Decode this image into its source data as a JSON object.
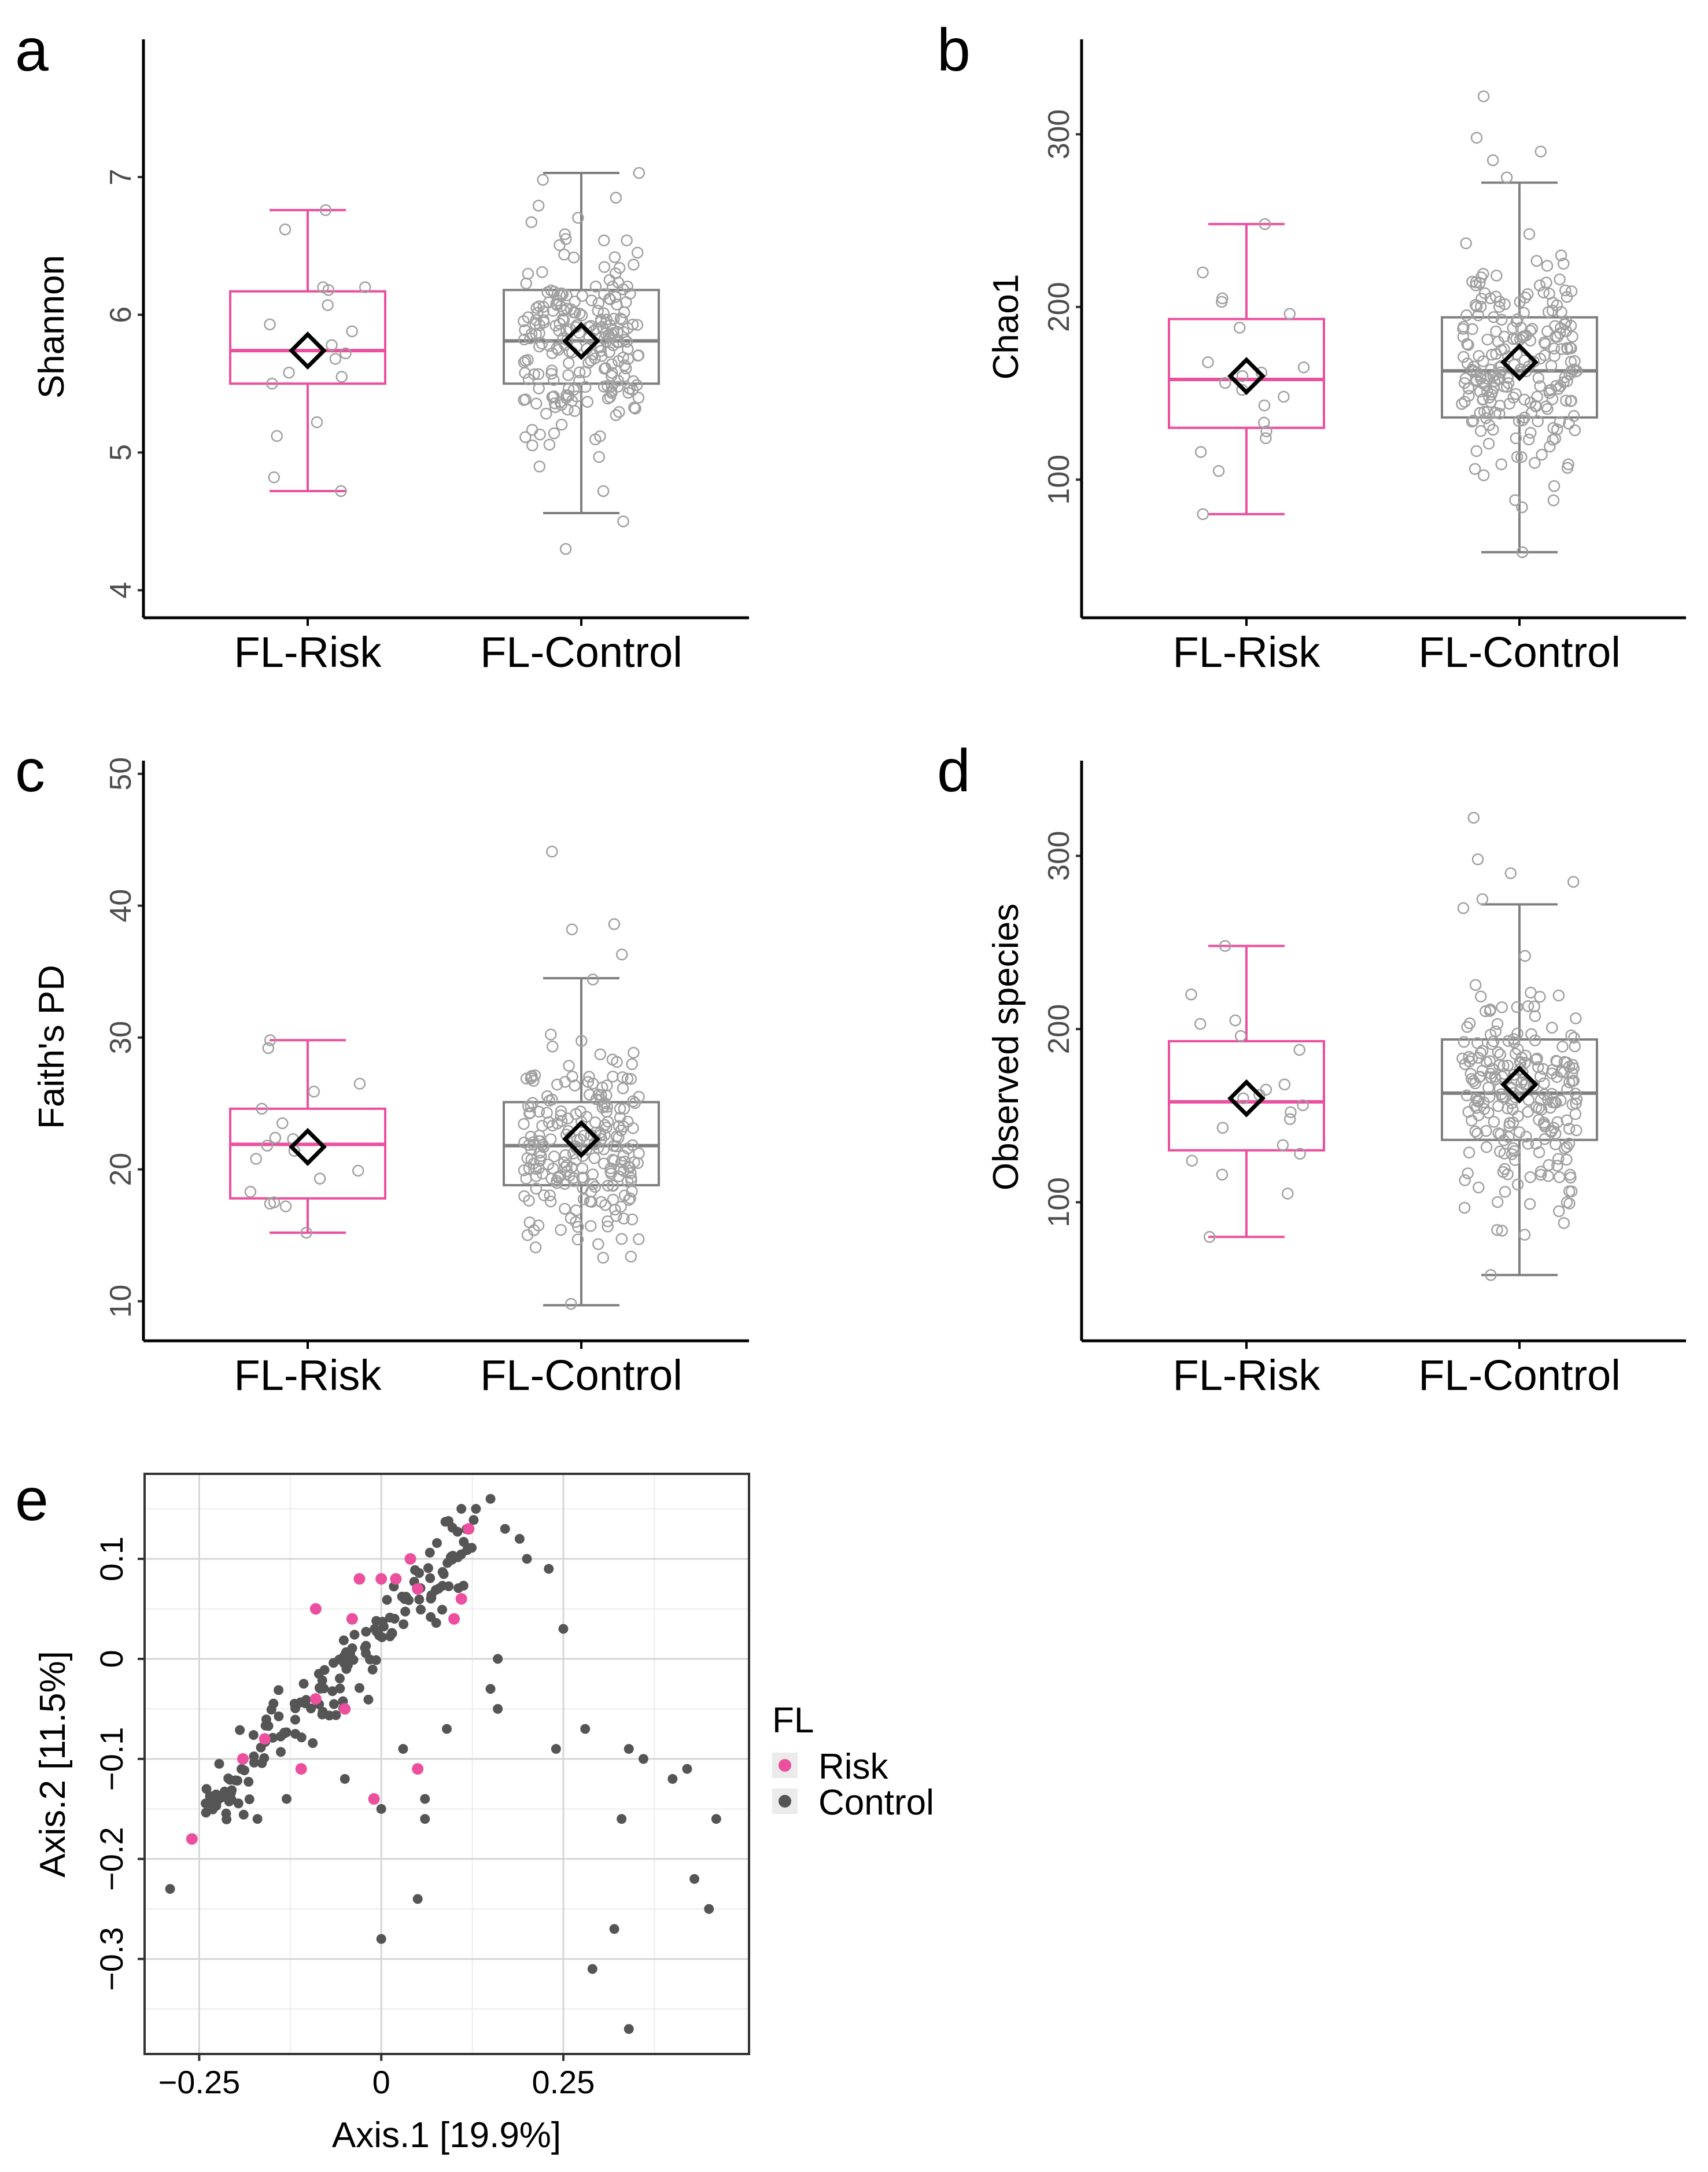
{
  "figure": {
    "panels": [
      "a",
      "b",
      "c",
      "d",
      "e"
    ],
    "colors": {
      "risk": "#ec4f9e",
      "control": "#555555",
      "control_box": "#7f7f7f",
      "grid": "#d6d6d6"
    }
  },
  "chart_data": [
    {
      "id": "a",
      "type": "box",
      "panel_label": "a",
      "ylabel": "Shannon",
      "ylim": [
        3.8,
        8.0
      ],
      "yticks": [
        4,
        5,
        6,
        7
      ],
      "categories": [
        "FL-Risk",
        "FL-Control"
      ],
      "boxes": [
        {
          "group": "FL-Risk",
          "whisker_low": 4.72,
          "q1": 5.5,
          "median": 5.74,
          "q3": 6.17,
          "whisker_high": 6.76,
          "mean": 5.74,
          "points": [
            6.76,
            6.62,
            6.2,
            6.2,
            6.18,
            6.07,
            5.93,
            5.88,
            5.78,
            5.72,
            5.68,
            5.58,
            5.55,
            5.5,
            5.22,
            5.12,
            4.82,
            4.72
          ]
        },
        {
          "group": "FL-Control",
          "whisker_low": 4.56,
          "q1": 5.5,
          "median": 5.81,
          "q3": 6.18,
          "whisker_high": 7.03,
          "mean": 5.81,
          "n_points": 230,
          "extreme_points": [
            7.03,
            6.98,
            6.85,
            4.72,
            4.5,
            4.3
          ]
        }
      ]
    },
    {
      "id": "b",
      "type": "box",
      "panel_label": "b",
      "ylabel": "Chao1",
      "ylim": [
        20,
        355
      ],
      "yticks": [
        100,
        200,
        300
      ],
      "categories": [
        "FL-Risk",
        "FL-Control"
      ],
      "boxes": [
        {
          "group": "FL-Risk",
          "whisker_low": 80,
          "q1": 130,
          "median": 158,
          "q3": 193,
          "whisker_high": 248,
          "mean": 160,
          "points": [
            248,
            220,
            205,
            203,
            196,
            188,
            168,
            165,
            162,
            160,
            156,
            152,
            148,
            143,
            133,
            128,
            124,
            116,
            105,
            80
          ]
        },
        {
          "group": "FL-Control",
          "whisker_low": 58,
          "q1": 136,
          "median": 163,
          "q3": 194,
          "whisker_high": 272,
          "mean": 168,
          "n_points": 230,
          "extreme_points": [
            322,
            298,
            290,
            285,
            275,
            88,
            84,
            58
          ]
        }
      ]
    },
    {
      "id": "c",
      "type": "box",
      "panel_label": "c",
      "ylabel": "Faith's PD",
      "ylim": [
        7,
        51
      ],
      "yticks": [
        10,
        20,
        30,
        40,
        50
      ],
      "categories": [
        "FL-Risk",
        "FL-Control"
      ],
      "boxes": [
        {
          "group": "FL-Risk",
          "whisker_low": 15.2,
          "q1": 17.8,
          "median": 21.9,
          "q3": 24.6,
          "whisker_high": 29.8,
          "mean": 21.7,
          "points": [
            29.8,
            29.2,
            26.5,
            25.9,
            24.6,
            23.5,
            22.4,
            22.3,
            21.8,
            21.4,
            20.8,
            19.9,
            19.3,
            18.3,
            17.5,
            17.4,
            17.2,
            15.2
          ]
        },
        {
          "group": "FL-Control",
          "whisker_low": 9.7,
          "q1": 18.8,
          "median": 21.8,
          "q3": 25.1,
          "whisker_high": 34.5,
          "mean": 22.3,
          "n_points": 230,
          "extreme_points": [
            44.1,
            38.6,
            38.2,
            36.3,
            34.4,
            13.3,
            9.8
          ]
        }
      ]
    },
    {
      "id": "d",
      "type": "box",
      "panel_label": "d",
      "ylabel": "Observed species",
      "ylim": [
        20,
        355
      ],
      "yticks": [
        100,
        200,
        300
      ],
      "categories": [
        "FL-Risk",
        "FL-Control"
      ],
      "boxes": [
        {
          "group": "FL-Risk",
          "whisker_low": 80,
          "q1": 130,
          "median": 158,
          "q3": 193,
          "whisker_high": 248,
          "mean": 160,
          "points": [
            248,
            220,
            205,
            203,
            196,
            188,
            168,
            165,
            162,
            160,
            156,
            152,
            148,
            143,
            133,
            128,
            124,
            116,
            105,
            80
          ]
        },
        {
          "group": "FL-Control",
          "whisker_low": 58,
          "q1": 136,
          "median": 163,
          "q3": 194,
          "whisker_high": 272,
          "mean": 168,
          "n_points": 230,
          "extreme_points": [
            322,
            298,
            290,
            285,
            275,
            88,
            84,
            58
          ]
        }
      ]
    },
    {
      "id": "e",
      "type": "scatter",
      "panel_label": "e",
      "xlabel": "Axis.1   [19.9%]",
      "ylabel": "Axis.2   [11.5%]",
      "xlim": [
        -0.325,
        0.505
      ],
      "ylim": [
        -0.395,
        0.185
      ],
      "xticks": [
        -0.25,
        0,
        0.25
      ],
      "xtick_labels": [
        "−0.25",
        "0",
        "0.25"
      ],
      "yticks": [
        -0.3,
        -0.2,
        -0.1,
        0,
        0.1
      ],
      "ytick_labels": [
        "−0.3",
        "−0.2",
        "−0.1",
        "0",
        "0.1"
      ],
      "legend": {
        "title": "FL",
        "entries": [
          "Risk",
          "Control"
        ],
        "position": "right"
      },
      "series": [
        {
          "name": "Risk",
          "points": [
            [
              0.12,
              0.13
            ],
            [
              0.04,
              0.1
            ],
            [
              0.02,
              0.08
            ],
            [
              0.0,
              0.08
            ],
            [
              -0.03,
              0.08
            ],
            [
              0.05,
              0.07
            ],
            [
              0.11,
              0.06
            ],
            [
              0.1,
              0.04
            ],
            [
              -0.09,
              0.05
            ],
            [
              -0.04,
              0.04
            ],
            [
              -0.09,
              -0.04
            ],
            [
              -0.05,
              -0.05
            ],
            [
              -0.16,
              -0.08
            ],
            [
              -0.19,
              -0.1
            ],
            [
              -0.11,
              -0.11
            ],
            [
              0.05,
              -0.11
            ],
            [
              -0.01,
              -0.14
            ],
            [
              -0.26,
              -0.18
            ]
          ]
        },
        {
          "name": "Control",
          "n_points": 200,
          "points": [
            [
              0.15,
              0.16
            ],
            [
              0.13,
              0.15
            ],
            [
              0.11,
              0.15
            ],
            [
              0.19,
              0.12
            ],
            [
              0.17,
              0.13
            ],
            [
              0.2,
              0.1
            ],
            [
              0.23,
              0.09
            ],
            [
              0.25,
              0.03
            ],
            [
              0.16,
              0.0
            ],
            [
              0.15,
              -0.03
            ],
            [
              0.16,
              -0.05
            ],
            [
              0.24,
              -0.09
            ],
            [
              0.28,
              -0.07
            ],
            [
              0.34,
              -0.09
            ],
            [
              0.36,
              -0.1
            ],
            [
              0.4,
              -0.12
            ],
            [
              0.42,
              -0.11
            ],
            [
              0.46,
              -0.16
            ],
            [
              0.33,
              -0.16
            ],
            [
              0.43,
              -0.22
            ],
            [
              0.45,
              -0.25
            ],
            [
              0.32,
              -0.27
            ],
            [
              0.29,
              -0.31
            ],
            [
              0.34,
              -0.37
            ],
            [
              0.05,
              -0.24
            ],
            [
              0.0,
              -0.28
            ],
            [
              -0.29,
              -0.23
            ],
            [
              -0.24,
              -0.13
            ],
            [
              -0.17,
              -0.16
            ],
            [
              -0.13,
              -0.14
            ],
            [
              0.06,
              -0.14
            ],
            [
              0.06,
              -0.16
            ],
            [
              0.09,
              -0.07
            ],
            [
              0.03,
              -0.09
            ],
            [
              0.0,
              -0.15
            ],
            [
              -0.05,
              -0.12
            ]
          ]
        }
      ]
    }
  ]
}
